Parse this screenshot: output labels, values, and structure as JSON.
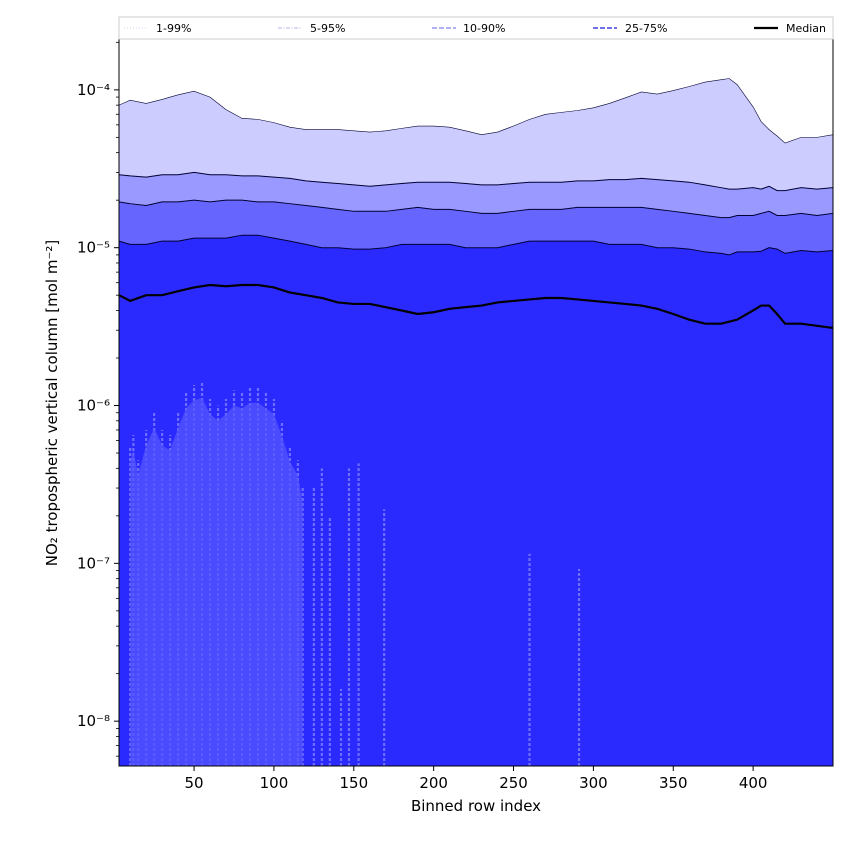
{
  "chart_data": {
    "type": "area",
    "title": "",
    "xlabel": "Binned row index",
    "ylabel": "NO₂ tropospheric vertical column [mol m⁻²]",
    "y_scale": "log",
    "xlim": [
      3,
      450
    ],
    "ylim": [
      5.2e-09,
      0.00021
    ],
    "grid": false,
    "x_ticks": [
      50,
      100,
      150,
      200,
      250,
      300,
      350,
      400
    ],
    "x_tick_labels": [
      "50",
      "100",
      "150",
      "200",
      "250",
      "300",
      "350",
      "400"
    ],
    "y_ticks": [
      1e-08,
      1e-07,
      1e-06,
      1e-05,
      0.0001
    ],
    "y_tick_labels": [
      "10⁻⁸",
      "10⁻⁷",
      "10⁻⁶",
      "10⁻⁵",
      "10⁻⁴"
    ],
    "legend_position": "top",
    "legend": [
      {
        "label": "1-99%",
        "style": "thin-dotted",
        "color": "#c8c8f0"
      },
      {
        "label": "5-95%",
        "style": "thin-dashdot",
        "color": "#9b9be8"
      },
      {
        "label": "10-90%",
        "style": "dashed",
        "color": "#8080f0"
      },
      {
        "label": "25-75%",
        "style": "dashed",
        "color": "#4040e0"
      },
      {
        "label": "Median",
        "style": "solid",
        "color": "#000000"
      }
    ],
    "fill_colors": {
      "band_1_99": "#ccccff",
      "band_5_95": "#9999ff",
      "band_10_90": "#6666ff",
      "band_25_75": "#2a2aff",
      "low_band": "#5555ff"
    },
    "x": [
      3,
      10,
      20,
      30,
      40,
      50,
      60,
      70,
      80,
      90,
      100,
      110,
      120,
      130,
      140,
      150,
      160,
      170,
      180,
      190,
      200,
      210,
      220,
      230,
      240,
      250,
      260,
      270,
      280,
      290,
      300,
      310,
      320,
      330,
      340,
      350,
      360,
      370,
      380,
      385,
      390,
      400,
      405,
      410,
      415,
      420,
      430,
      440,
      450
    ],
    "series": [
      {
        "name": "1-99%",
        "role": "upper_edge",
        "values": [
          8e-05,
          8.6e-05,
          8.2e-05,
          8.7e-05,
          9.3e-05,
          9.8e-05,
          9e-05,
          7.5e-05,
          6.6e-05,
          6.5e-05,
          6.2e-05,
          5.8e-05,
          5.6e-05,
          5.6e-05,
          5.6e-05,
          5.5e-05,
          5.4e-05,
          5.5e-05,
          5.7e-05,
          5.9e-05,
          5.9e-05,
          5.8e-05,
          5.5e-05,
          5.2e-05,
          5.4e-05,
          5.9e-05,
          6.5e-05,
          7e-05,
          7.2e-05,
          7.4e-05,
          7.7e-05,
          8.2e-05,
          8.9e-05,
          9.7e-05,
          9.4e-05,
          9.9e-05,
          0.000105,
          0.000112,
          0.000116,
          0.000118,
          0.000108,
          7.8e-05,
          6.3e-05,
          5.6e-05,
          5.1e-05,
          4.6e-05,
          5e-05,
          5e-05,
          5.2e-05
        ]
      },
      {
        "name": "5-95%",
        "role": "upper_edge",
        "values": [
          2.9e-05,
          2.85e-05,
          2.8e-05,
          2.9e-05,
          2.9e-05,
          3e-05,
          2.9e-05,
          2.9e-05,
          2.85e-05,
          2.85e-05,
          2.8e-05,
          2.75e-05,
          2.65e-05,
          2.6e-05,
          2.55e-05,
          2.5e-05,
          2.45e-05,
          2.5e-05,
          2.55e-05,
          2.6e-05,
          2.6e-05,
          2.6e-05,
          2.55e-05,
          2.5e-05,
          2.5e-05,
          2.55e-05,
          2.6e-05,
          2.6e-05,
          2.6e-05,
          2.65e-05,
          2.65e-05,
          2.7e-05,
          2.7e-05,
          2.75e-05,
          2.7e-05,
          2.65e-05,
          2.6e-05,
          2.5e-05,
          2.4e-05,
          2.35e-05,
          2.35e-05,
          2.4e-05,
          2.35e-05,
          2.45e-05,
          2.3e-05,
          2.3e-05,
          2.4e-05,
          2.35e-05,
          2.4e-05
        ]
      },
      {
        "name": "10-90%",
        "role": "upper_edge",
        "values": [
          1.95e-05,
          1.9e-05,
          1.85e-05,
          1.95e-05,
          1.95e-05,
          2e-05,
          1.95e-05,
          2e-05,
          2e-05,
          1.95e-05,
          1.95e-05,
          1.9e-05,
          1.85e-05,
          1.8e-05,
          1.75e-05,
          1.7e-05,
          1.7e-05,
          1.7e-05,
          1.75e-05,
          1.8e-05,
          1.75e-05,
          1.75e-05,
          1.7e-05,
          1.65e-05,
          1.65e-05,
          1.7e-05,
          1.75e-05,
          1.75e-05,
          1.75e-05,
          1.8e-05,
          1.8e-05,
          1.8e-05,
          1.8e-05,
          1.8e-05,
          1.75e-05,
          1.7e-05,
          1.65e-05,
          1.6e-05,
          1.55e-05,
          1.55e-05,
          1.6e-05,
          1.6e-05,
          1.65e-05,
          1.7e-05,
          1.6e-05,
          1.6e-05,
          1.65e-05,
          1.6e-05,
          1.65e-05
        ]
      },
      {
        "name": "25-75%",
        "role": "upper_edge",
        "values": [
          1.1e-05,
          1.05e-05,
          1.05e-05,
          1.1e-05,
          1.1e-05,
          1.15e-05,
          1.15e-05,
          1.15e-05,
          1.2e-05,
          1.2e-05,
          1.15e-05,
          1.1e-05,
          1.05e-05,
          1e-05,
          1e-05,
          9.8e-06,
          9.8e-06,
          1e-05,
          1.05e-05,
          1.05e-05,
          1.05e-05,
          1.05e-05,
          1e-05,
          1e-05,
          1e-05,
          1.05e-05,
          1.1e-05,
          1.1e-05,
          1.1e-05,
          1.1e-05,
          1.1e-05,
          1.05e-05,
          1.05e-05,
          1.05e-05,
          1e-05,
          1e-05,
          9.8e-06,
          9.4e-06,
          9.2e-06,
          9e-06,
          9.4e-06,
          9.4e-06,
          9.5e-06,
          1e-05,
          9.8e-06,
          9.2e-06,
          9.6e-06,
          9.4e-06,
          9.6e-06
        ]
      },
      {
        "name": "Median",
        "role": "line",
        "values": [
          5e-06,
          4.6e-06,
          5e-06,
          5e-06,
          5.3e-06,
          5.6e-06,
          5.8e-06,
          5.7e-06,
          5.8e-06,
          5.8e-06,
          5.6e-06,
          5.2e-06,
          5e-06,
          4.8e-06,
          4.5e-06,
          4.4e-06,
          4.4e-06,
          4.2e-06,
          4e-06,
          3.8e-06,
          3.9e-06,
          4.1e-06,
          4.2e-06,
          4.3e-06,
          4.5e-06,
          4.6e-06,
          4.7e-06,
          4.8e-06,
          4.8e-06,
          4.7e-06,
          4.6e-06,
          4.5e-06,
          4.4e-06,
          4.3e-06,
          4.1e-06,
          3.8e-06,
          3.5e-06,
          3.3e-06,
          3.3e-06,
          3.4e-06,
          3.5e-06,
          4e-06,
          4.3e-06,
          4.3e-06,
          3.8e-06,
          3.3e-06,
          3.3e-06,
          3.2e-06,
          3.1e-06
        ]
      }
    ],
    "low_spikes": [
      {
        "x": 10,
        "y": 5.5e-07
      },
      {
        "x": 12,
        "y": 6.5e-07
      },
      {
        "x": 15,
        "y": 4.5e-07
      },
      {
        "x": 20,
        "y": 7e-07
      },
      {
        "x": 25,
        "y": 9e-07
      },
      {
        "x": 30,
        "y": 7e-07
      },
      {
        "x": 35,
        "y": 6.5e-07
      },
      {
        "x": 40,
        "y": 9e-07
      },
      {
        "x": 45,
        "y": 1.2e-06
      },
      {
        "x": 50,
        "y": 1.35e-06
      },
      {
        "x": 55,
        "y": 1.4e-06
      },
      {
        "x": 60,
        "y": 1.1e-06
      },
      {
        "x": 65,
        "y": 1e-06
      },
      {
        "x": 70,
        "y": 1.1e-06
      },
      {
        "x": 75,
        "y": 1.25e-06
      },
      {
        "x": 80,
        "y": 1.2e-06
      },
      {
        "x": 85,
        "y": 1.3e-06
      },
      {
        "x": 90,
        "y": 1.3e-06
      },
      {
        "x": 95,
        "y": 1.2e-06
      },
      {
        "x": 100,
        "y": 1.1e-06
      },
      {
        "x": 105,
        "y": 8e-07
      },
      {
        "x": 110,
        "y": 5.5e-07
      },
      {
        "x": 115,
        "y": 4.5e-07
      },
      {
        "x": 118,
        "y": 3e-07
      },
      {
        "x": 125,
        "y": 3e-07
      },
      {
        "x": 130,
        "y": 4e-07
      },
      {
        "x": 135,
        "y": 2e-07
      },
      {
        "x": 142,
        "y": 1.6e-08
      },
      {
        "x": 147,
        "y": 4e-07
      },
      {
        "x": 153,
        "y": 4.3e-07
      },
      {
        "x": 169,
        "y": 2.2e-07
      },
      {
        "x": 260,
        "y": 1.15e-07
      },
      {
        "x": 291,
        "y": 9.2e-08
      }
    ]
  }
}
